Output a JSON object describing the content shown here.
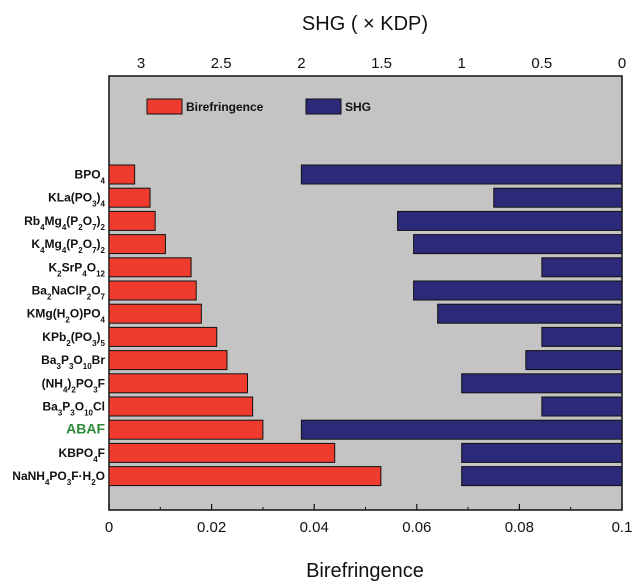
{
  "chart_data": {
    "type": "bar",
    "orientation": "horizontal",
    "categories": [
      "BPO4",
      "KLa(PO3)4",
      "Rb4Mg4(P2O7)2",
      "K4Mg4(P2O7)2",
      "K2SrP4O12",
      "Ba2NaClP2O7",
      "KMg(H2O)PO4",
      "KPb2(PO3)5",
      "Ba3P3O10Br",
      "(NH4)2PO3F",
      "Ba3P3O10Cl",
      "ABAF",
      "KBPO4F",
      "NaNH4PO3F·H2O"
    ],
    "categories_display": [
      [
        [
          "BPO",
          "n"
        ],
        [
          "4",
          "sub"
        ]
      ],
      [
        [
          "KLa(PO",
          "n"
        ],
        [
          "3",
          "sub"
        ],
        [
          ")",
          "n"
        ],
        [
          "4",
          "sub"
        ]
      ],
      [
        [
          "Rb",
          "n"
        ],
        [
          "4",
          "sub"
        ],
        [
          "Mg",
          "n"
        ],
        [
          "4",
          "sub"
        ],
        [
          "(P",
          "n"
        ],
        [
          "2",
          "sub"
        ],
        [
          "O",
          "n"
        ],
        [
          "7",
          "sub"
        ],
        [
          ")",
          "n"
        ],
        [
          "2",
          "sub"
        ]
      ],
      [
        [
          "K",
          "n"
        ],
        [
          "4",
          "sub"
        ],
        [
          "Mg",
          "n"
        ],
        [
          "4",
          "sub"
        ],
        [
          "(P",
          "n"
        ],
        [
          "2",
          "sub"
        ],
        [
          "O",
          "n"
        ],
        [
          "7",
          "sub"
        ],
        [
          ")",
          "n"
        ],
        [
          "2",
          "sub"
        ]
      ],
      [
        [
          "K",
          "n"
        ],
        [
          "2",
          "sub"
        ],
        [
          "SrP",
          "n"
        ],
        [
          "4",
          "sub"
        ],
        [
          "O",
          "n"
        ],
        [
          "12",
          "sub"
        ]
      ],
      [
        [
          "Ba",
          "n"
        ],
        [
          "2",
          "sub"
        ],
        [
          "NaClP",
          "n"
        ],
        [
          "2",
          "sub"
        ],
        [
          "O",
          "n"
        ],
        [
          "7",
          "sub"
        ]
      ],
      [
        [
          "KMg(H",
          "n"
        ],
        [
          "2",
          "sub"
        ],
        [
          "O)PO",
          "n"
        ],
        [
          "4",
          "sub"
        ]
      ],
      [
        [
          "KPb",
          "n"
        ],
        [
          "2",
          "sub"
        ],
        [
          "(PO",
          "n"
        ],
        [
          "3",
          "sub"
        ],
        [
          ")",
          "n"
        ],
        [
          "5",
          "sub"
        ]
      ],
      [
        [
          "Ba",
          "n"
        ],
        [
          "3",
          "sub"
        ],
        [
          "P",
          "n"
        ],
        [
          "3",
          "sub"
        ],
        [
          "O",
          "n"
        ],
        [
          "10",
          "sub"
        ],
        [
          "Br",
          "n"
        ]
      ],
      [
        [
          "(NH",
          "n"
        ],
        [
          "4",
          "sub"
        ],
        [
          ")",
          "n"
        ],
        [
          "2",
          "sub"
        ],
        [
          "PO",
          "n"
        ],
        [
          "3",
          "sub"
        ],
        [
          "F",
          "n"
        ]
      ],
      [
        [
          "Ba",
          "n"
        ],
        [
          "3",
          "sub"
        ],
        [
          "P",
          "n"
        ],
        [
          "3",
          "sub"
        ],
        [
          "O",
          "n"
        ],
        [
          "10",
          "sub"
        ],
        [
          "Cl",
          "n"
        ]
      ],
      [
        [
          "ABAF",
          "n"
        ]
      ],
      [
        [
          "KBPO",
          "n"
        ],
        [
          "4",
          "sub"
        ],
        [
          "F",
          "n"
        ]
      ],
      [
        [
          "NaNH",
          "n"
        ],
        [
          "4",
          "sub"
        ],
        [
          "PO",
          "n"
        ],
        [
          "3",
          "sub"
        ],
        [
          "F·H",
          "n"
        ],
        [
          "2",
          "sub"
        ],
        [
          "O",
          "n"
        ]
      ]
    ],
    "highlight_category": "ABAF",
    "series": [
      {
        "name": "Birefringence",
        "axis": "bottom",
        "color": "#ee3b2e",
        "values": [
          0.005,
          0.008,
          0.009,
          0.011,
          0.016,
          0.017,
          0.018,
          0.021,
          0.023,
          0.027,
          0.028,
          0.03,
          0.044,
          0.053
        ]
      },
      {
        "name": "SHG",
        "axis": "top",
        "reversed": true,
        "color": "#2c2a78",
        "values": [
          2.0,
          0.8,
          1.4,
          1.3,
          0.5,
          1.3,
          1.15,
          0.5,
          0.6,
          1.0,
          0.5,
          2.0,
          1.0,
          1.0
        ]
      }
    ],
    "xlabel": "Birefringence",
    "xlim": [
      0,
      0.1
    ],
    "x_ticks": [
      "0",
      "0.02",
      "0.04",
      "0.06",
      "0.08",
      "0.1"
    ],
    "x_tick_values": [
      0,
      0.02,
      0.04,
      0.06,
      0.08,
      0.1
    ],
    "x2label": "SHG ( × KDP)",
    "x2lim": [
      3.2,
      0
    ],
    "x2_ticks": [
      "3",
      "2.5",
      "2",
      "1.5",
      "1",
      "0.5",
      "0"
    ],
    "x2_tick_values": [
      3,
      2.5,
      2,
      1.5,
      1,
      0.5,
      0
    ],
    "legend": {
      "position": "top-left",
      "entries": [
        "Birefringence",
        "SHG"
      ]
    },
    "grid": false,
    "background": "#c4c4c4",
    "highlight_color": "#2e8b3a"
  }
}
